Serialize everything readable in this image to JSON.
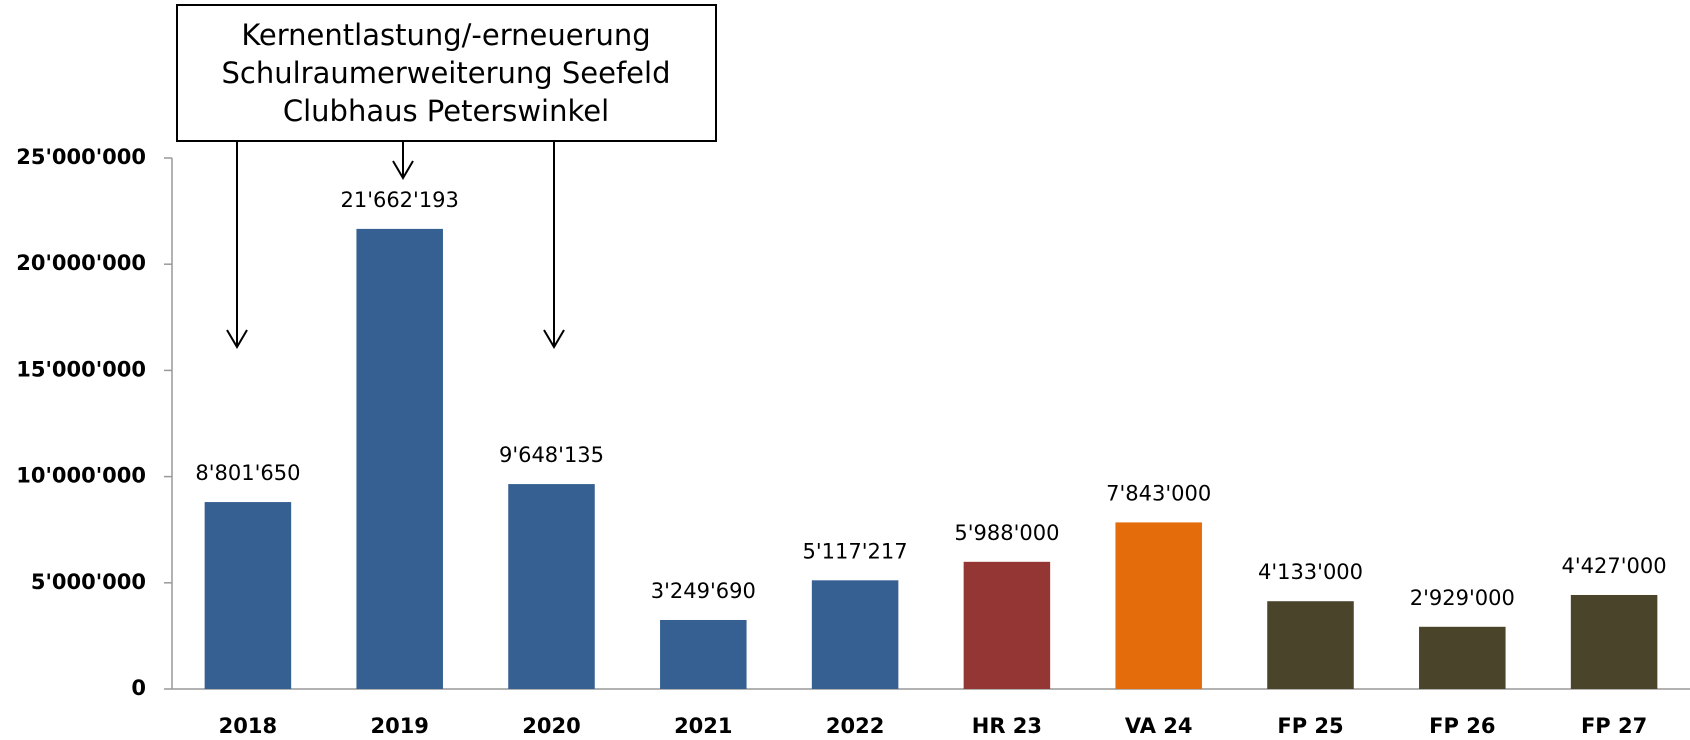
{
  "chart_data": {
    "type": "bar",
    "annotation": [
      "Kernentlastung/-erneuerung",
      "Schulraumerweiterung Seefeld",
      "Clubhaus Peterswinkel"
    ],
    "categories": [
      "2018",
      "2019",
      "2020",
      "2021",
      "2022",
      "HR 23",
      "VA 24",
      "FP 25",
      "FP 26",
      "FP 27"
    ],
    "values": [
      8801650,
      21662193,
      9648135,
      3249690,
      5117217,
      5988000,
      7843000,
      4133000,
      2929000,
      4427000
    ],
    "value_labels": [
      "8'801'650",
      "21'662'193",
      "9'648'135",
      "3'249'690",
      "5'117'217",
      "5'988'000",
      "7'843'000",
      "4'133'000",
      "2'929'000",
      "4'427'000"
    ],
    "colors": [
      "#376092",
      "#376092",
      "#376092",
      "#376092",
      "#376092",
      "#943634",
      "#e46c0a",
      "#4a452a",
      "#4a452a",
      "#4a452a"
    ],
    "ylim": [
      0,
      25000000
    ],
    "yticks": [
      0,
      {
        "value": 5000000,
        "label": "5'000'000"
      },
      {
        "value": 10000000,
        "label": "10'000'000"
      },
      {
        "value": 15000000,
        "label": "15'000'000"
      },
      {
        "value": 20000000,
        "label": "20'000'000"
      },
      {
        "value": 25000000,
        "label": "25'000'000"
      }
    ],
    "grid": false
  }
}
